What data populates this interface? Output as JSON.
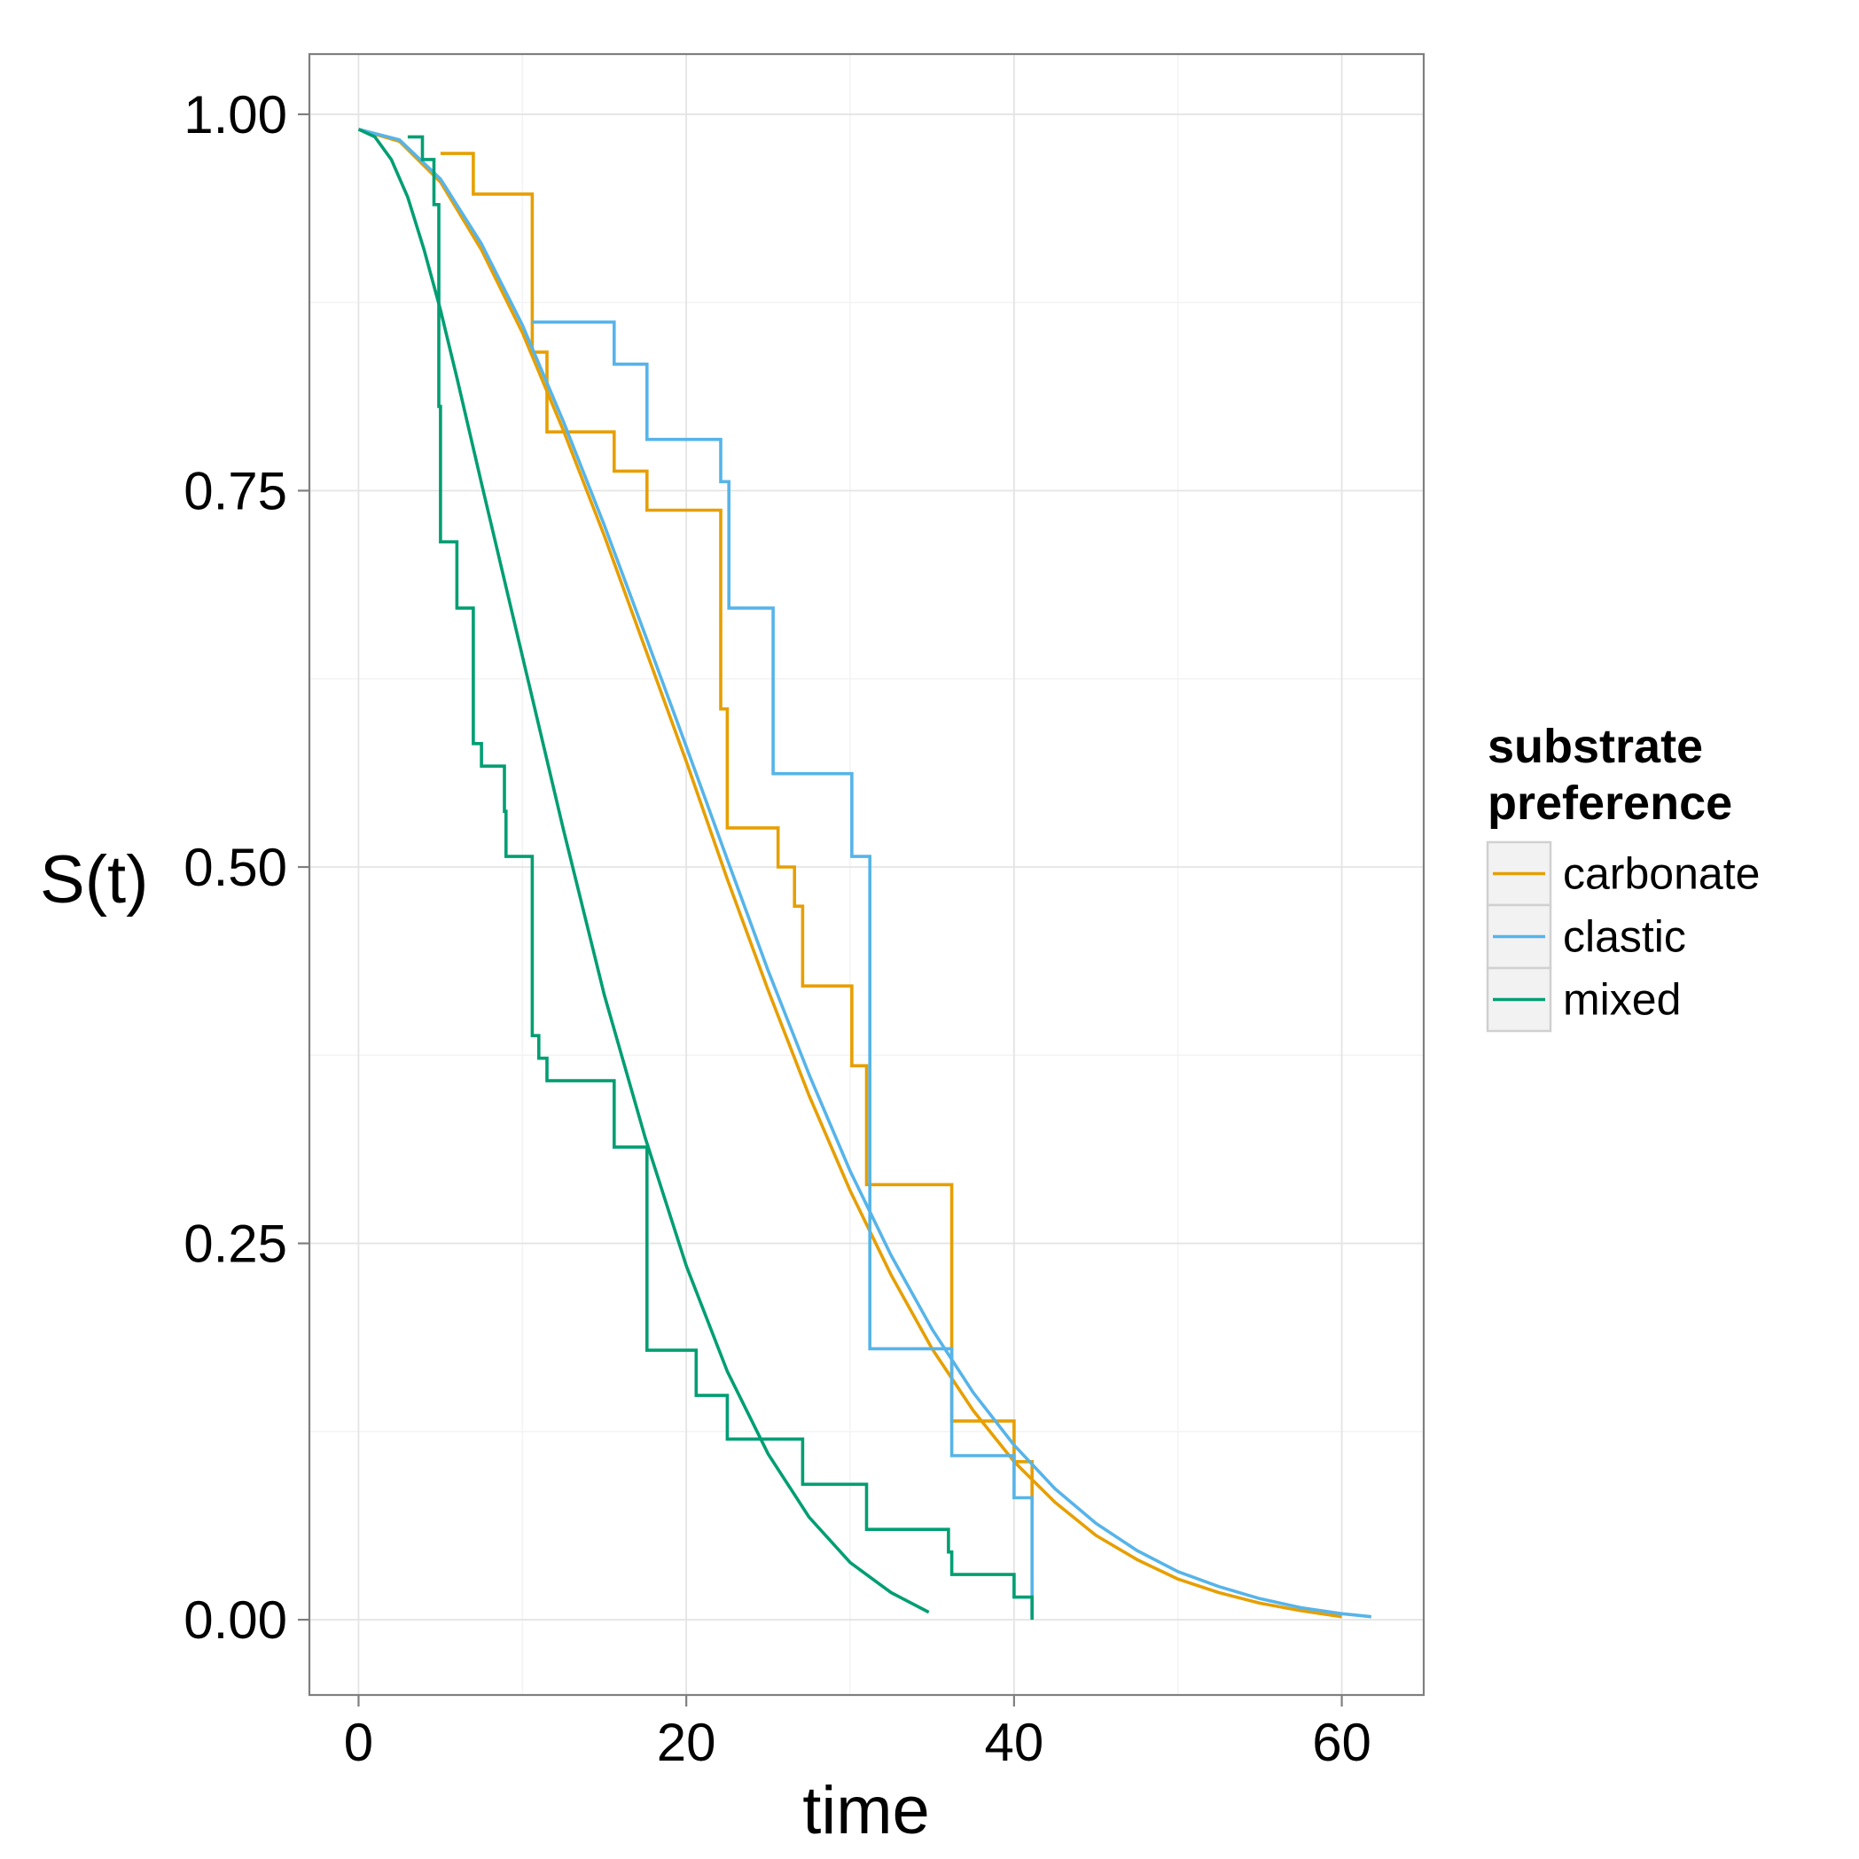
{
  "chart_data": {
    "type": "line",
    "xlabel": "time",
    "ylabel": "S(t)",
    "xlim": [
      -3,
      65
    ],
    "ylim": [
      -0.05,
      1.04
    ],
    "x_ticks": [
      0,
      20,
      40,
      60
    ],
    "y_ticks": [
      0.0,
      0.25,
      0.5,
      0.75,
      1.0
    ],
    "x_tick_labels": [
      "0",
      "20",
      "40",
      "60"
    ],
    "y_tick_labels": [
      "0.00",
      "0.25",
      "0.50",
      "0.75",
      "1.00"
    ],
    "grid": true,
    "legend": {
      "title_lines": [
        "substrate",
        "preference"
      ],
      "position": "right",
      "entries": [
        "carbonate",
        "clastic",
        "mixed"
      ]
    },
    "series": [
      {
        "name": "carbonate",
        "color": "#E69F00",
        "step": [
          [
            5,
            0.974
          ],
          [
            7,
            0.974
          ],
          [
            7,
            0.947
          ],
          [
            10.6,
            0.947
          ],
          [
            10.6,
            0.842
          ],
          [
            11.5,
            0.842
          ],
          [
            11.5,
            0.789
          ],
          [
            15.6,
            0.789
          ],
          [
            15.6,
            0.763
          ],
          [
            17.6,
            0.763
          ],
          [
            17.6,
            0.737
          ],
          [
            22.1,
            0.737
          ],
          [
            22.1,
            0.605
          ],
          [
            22.5,
            0.605
          ],
          [
            22.5,
            0.526
          ],
          [
            25.6,
            0.526
          ],
          [
            25.6,
            0.5
          ],
          [
            26.6,
            0.5
          ],
          [
            26.6,
            0.474
          ],
          [
            27.1,
            0.474
          ],
          [
            27.1,
            0.421
          ],
          [
            30.1,
            0.421
          ],
          [
            30.1,
            0.368
          ],
          [
            31,
            0.368
          ],
          [
            31,
            0.289
          ],
          [
            36.2,
            0.289
          ],
          [
            36.2,
            0.132
          ],
          [
            40,
            0.132
          ],
          [
            40,
            0.105
          ],
          [
            41.1,
            0.105
          ],
          [
            41.1,
            0.079
          ]
        ],
        "fit": [
          [
            0,
            0.99
          ],
          [
            2.5,
            0.982
          ],
          [
            5,
            0.955
          ],
          [
            7.5,
            0.91
          ],
          [
            10,
            0.855
          ],
          [
            12.5,
            0.79
          ],
          [
            15,
            0.72
          ],
          [
            17.5,
            0.645
          ],
          [
            20,
            0.57
          ],
          [
            22.5,
            0.492
          ],
          [
            25,
            0.418
          ],
          [
            27.5,
            0.348
          ],
          [
            30,
            0.285
          ],
          [
            32.5,
            0.229
          ],
          [
            35,
            0.18
          ],
          [
            37.5,
            0.139
          ],
          [
            40,
            0.105
          ],
          [
            42.5,
            0.078
          ],
          [
            45,
            0.056
          ],
          [
            47.5,
            0.04
          ],
          [
            50,
            0.027
          ],
          [
            52.5,
            0.018
          ],
          [
            55,
            0.011
          ],
          [
            57.5,
            0.006
          ],
          [
            60,
            0.002
          ]
        ]
      },
      {
        "name": "clastic",
        "color": "#56B4E9",
        "step": [
          [
            10.6,
            0.862
          ],
          [
            15.6,
            0.862
          ],
          [
            15.6,
            0.834
          ],
          [
            17.6,
            0.834
          ],
          [
            17.6,
            0.784
          ],
          [
            22.1,
            0.784
          ],
          [
            22.1,
            0.756
          ],
          [
            22.6,
            0.756
          ],
          [
            22.6,
            0.672
          ],
          [
            25.3,
            0.672
          ],
          [
            25.3,
            0.562
          ],
          [
            30.1,
            0.562
          ],
          [
            30.1,
            0.507
          ],
          [
            31.2,
            0.507
          ],
          [
            31.2,
            0.18
          ],
          [
            36.2,
            0.18
          ],
          [
            36.2,
            0.109
          ],
          [
            40,
            0.109
          ],
          [
            40,
            0.081
          ],
          [
            41.1,
            0.081
          ],
          [
            41.1,
            0.003
          ]
        ],
        "fit": [
          [
            0,
            0.99
          ],
          [
            2.5,
            0.983
          ],
          [
            5,
            0.957
          ],
          [
            7.5,
            0.914
          ],
          [
            10,
            0.86
          ],
          [
            12.5,
            0.796
          ],
          [
            15,
            0.727
          ],
          [
            17.5,
            0.654
          ],
          [
            20,
            0.58
          ],
          [
            22.5,
            0.505
          ],
          [
            25,
            0.431
          ],
          [
            27.5,
            0.362
          ],
          [
            30,
            0.298
          ],
          [
            32.5,
            0.242
          ],
          [
            35,
            0.193
          ],
          [
            37.5,
            0.151
          ],
          [
            40,
            0.116
          ],
          [
            42.5,
            0.087
          ],
          [
            45,
            0.064
          ],
          [
            47.5,
            0.046
          ],
          [
            50,
            0.032
          ],
          [
            52.5,
            0.022
          ],
          [
            55,
            0.014
          ],
          [
            57.5,
            0.008
          ],
          [
            60,
            0.004
          ],
          [
            61.8,
            0.002
          ]
        ]
      },
      {
        "name": "mixed",
        "color": "#009E73",
        "step": [
          [
            3,
            0.985
          ],
          [
            3.9,
            0.985
          ],
          [
            3.9,
            0.97
          ],
          [
            4.6,
            0.97
          ],
          [
            4.6,
            0.94
          ],
          [
            4.9,
            0.94
          ],
          [
            4.9,
            0.806
          ],
          [
            5,
            0.806
          ],
          [
            5,
            0.716
          ],
          [
            6,
            0.716
          ],
          [
            6,
            0.672
          ],
          [
            7,
            0.672
          ],
          [
            7,
            0.582
          ],
          [
            7.5,
            0.582
          ],
          [
            7.5,
            0.567
          ],
          [
            8.9,
            0.567
          ],
          [
            8.9,
            0.537
          ],
          [
            9,
            0.537
          ],
          [
            9,
            0.507
          ],
          [
            10.6,
            0.507
          ],
          [
            10.6,
            0.388
          ],
          [
            11,
            0.388
          ],
          [
            11,
            0.373
          ],
          [
            11.5,
            0.373
          ],
          [
            11.5,
            0.358
          ],
          [
            15.6,
            0.358
          ],
          [
            15.6,
            0.314
          ],
          [
            17.6,
            0.314
          ],
          [
            17.6,
            0.179
          ],
          [
            20.6,
            0.179
          ],
          [
            20.6,
            0.149
          ],
          [
            22.5,
            0.149
          ],
          [
            22.5,
            0.12
          ],
          [
            27.1,
            0.12
          ],
          [
            27.1,
            0.09
          ],
          [
            31,
            0.09
          ],
          [
            31,
            0.06
          ],
          [
            36,
            0.06
          ],
          [
            36,
            0.045
          ],
          [
            36.2,
            0.045
          ],
          [
            36.2,
            0.03
          ],
          [
            40,
            0.03
          ],
          [
            40,
            0.015
          ],
          [
            41.1,
            0.015
          ],
          [
            41.1,
            0
          ]
        ],
        "fit": [
          [
            0,
            0.99
          ],
          [
            1,
            0.985
          ],
          [
            2,
            0.97
          ],
          [
            3,
            0.945
          ],
          [
            4,
            0.91
          ],
          [
            5,
            0.87
          ],
          [
            6,
            0.825
          ],
          [
            7.5,
            0.755
          ],
          [
            10,
            0.64
          ],
          [
            12.5,
            0.525
          ],
          [
            15,
            0.415
          ],
          [
            17.5,
            0.32
          ],
          [
            20,
            0.235
          ],
          [
            22.5,
            0.165
          ],
          [
            25,
            0.11
          ],
          [
            27.5,
            0.068
          ],
          [
            30,
            0.038
          ],
          [
            32.5,
            0.018
          ],
          [
            34.8,
            0.005
          ]
        ]
      }
    ]
  }
}
